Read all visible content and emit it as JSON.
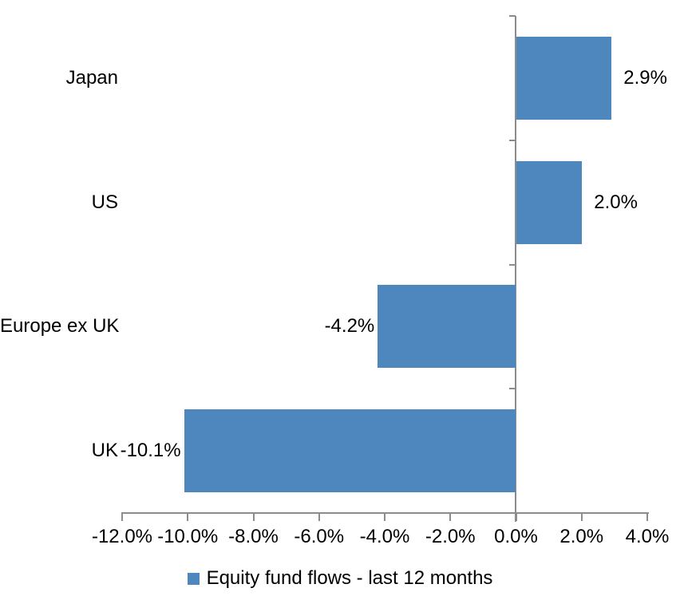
{
  "chart_data": {
    "type": "bar",
    "orientation": "horizontal",
    "title": "",
    "categories": [
      "Japan",
      "US",
      "Europe ex UK",
      "UK"
    ],
    "series": [
      {
        "name": "Equity fund flows - last 12 months",
        "values": [
          2.9,
          2.0,
          -4.2,
          -10.1
        ],
        "value_labels": [
          "2.9%",
          "2.0%",
          "-4.2%",
          "-10.1%"
        ]
      }
    ],
    "xlabel": "",
    "ylabel": "",
    "xlim": [
      -12,
      4
    ],
    "x_tick_values": [
      -12,
      -10,
      -8,
      -6,
      -4,
      -2,
      0,
      2,
      4
    ],
    "x_tick_labels": [
      "-12.0%",
      "-10.0%",
      "-8.0%",
      "-6.0%",
      "-4.0%",
      "-2.0%",
      "0.0%",
      "2.0%",
      "4.0%"
    ],
    "grid": false,
    "legend_position": "bottom-center",
    "data_labels": "outside-end",
    "colors": {
      "bar": "#4E86BE",
      "axis": "#8C8C8C",
      "text": "#000000",
      "background": "#FFFFFF"
    }
  },
  "legend": {
    "label": "Equity fund flows - last 12 months"
  }
}
